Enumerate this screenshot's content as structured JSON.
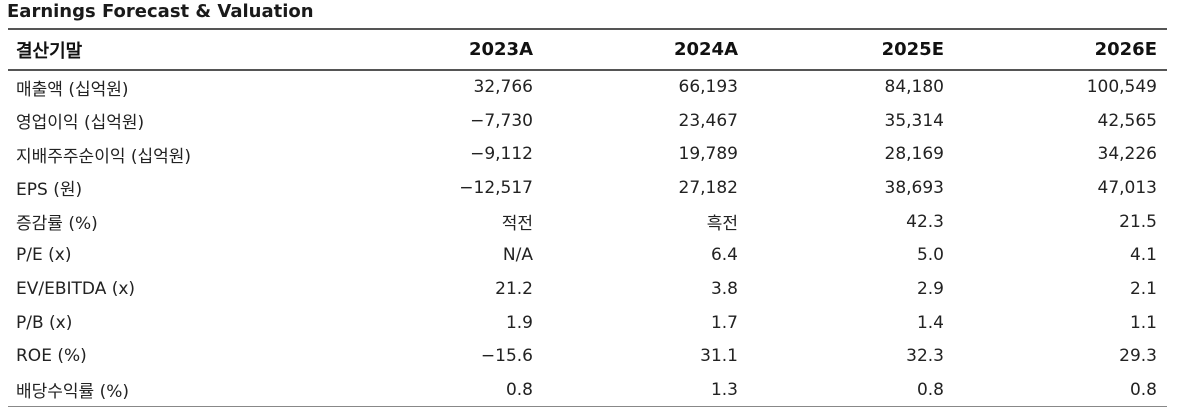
{
  "title": "Earnings Forecast & Valuation",
  "table": {
    "header": {
      "label": "결산기말",
      "years": [
        "2023A",
        "2024A",
        "2025E",
        "2026E"
      ]
    },
    "rows": [
      {
        "label": "매출액 (십억원)",
        "values": [
          "32,766",
          "66,193",
          "84,180",
          "100,549"
        ]
      },
      {
        "label": "영업이익 (십억원)",
        "values": [
          "−7,730",
          "23,467",
          "35,314",
          "42,565"
        ]
      },
      {
        "label": "지배주주순이익 (십억원)",
        "values": [
          "−9,112",
          "19,789",
          "28,169",
          "34,226"
        ]
      },
      {
        "label": "EPS (원)",
        "values": [
          "−12,517",
          "27,182",
          "38,693",
          "47,013"
        ]
      },
      {
        "label": "증감률 (%)",
        "values": [
          "적전",
          "흑전",
          "42.3",
          "21.5"
        ]
      },
      {
        "label": "P/E (x)",
        "values": [
          "N/A",
          "6.4",
          "5.0",
          "4.1"
        ]
      },
      {
        "label": "EV/EBITDA (x)",
        "values": [
          "21.2",
          "3.8",
          "2.9",
          "2.1"
        ]
      },
      {
        "label": "P/B (x)",
        "values": [
          "1.9",
          "1.7",
          "1.4",
          "1.1"
        ]
      },
      {
        "label": "ROE (%)",
        "values": [
          "−15.6",
          "31.1",
          "32.3",
          "29.3"
        ]
      },
      {
        "label": "배당수익률 (%)",
        "values": [
          "0.8",
          "1.3",
          "0.8",
          "0.8"
        ]
      }
    ]
  }
}
